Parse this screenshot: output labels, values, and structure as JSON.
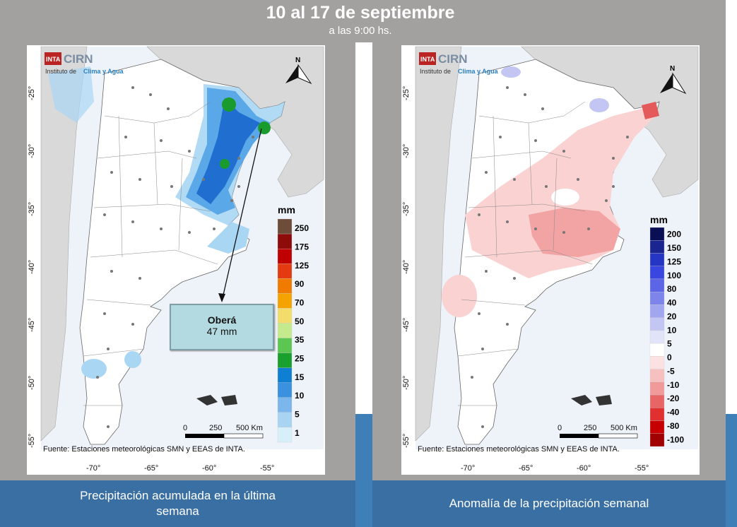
{
  "header": {
    "title": "10 al 17 de septiembre",
    "subtitle": "a las 9:00 hs."
  },
  "logo": {
    "inta": "INTA",
    "cirn": "CIRN",
    "institute_prefix": "Instituto de",
    "institute_name": "Clima y Agua"
  },
  "source_text": "Fuente: Estaciones meteorológicas SMN y EEAS de INTA.",
  "north_label": "N",
  "scale_bar": {
    "ticks": [
      "0",
      "250",
      "500 Km"
    ]
  },
  "lat_ticks": [
    "-25°",
    "-30°",
    "-35°",
    "-40°",
    "-45°",
    "-50°",
    "-55°"
  ],
  "lon_ticks": [
    "-70°",
    "-65°",
    "-60°",
    "-55°"
  ],
  "left_map": {
    "caption_line1": "Precipitación acumulada en la última",
    "caption_line2": "semana",
    "legend_unit": "mm",
    "legend_labels": [
      "250",
      "175",
      "125",
      "90",
      "70",
      "50",
      "35",
      "25",
      "15",
      "10",
      "5",
      "1"
    ],
    "legend_colors": [
      "#6e4c3a",
      "#8e0b0b",
      "#c00000",
      "#e43a12",
      "#f07b00",
      "#f4a300",
      "#f3dc69",
      "#c5e98d",
      "#5cc653",
      "#1aa02d",
      "#0f7fd4",
      "#3a91df",
      "#7bb7ec",
      "#a8d4f2",
      "#d6eff9"
    ],
    "callout_name": "Oberá",
    "callout_value": "47 mm"
  },
  "right_map": {
    "caption": "Anomalía de la precipitación semanal",
    "legend_unit": "mm",
    "legend_labels": [
      "200",
      "150",
      "125",
      "100",
      "80",
      "40",
      "20",
      "10",
      "5",
      "0",
      "-5",
      "-10",
      "-20",
      "-40",
      "-80",
      "-100"
    ],
    "legend_colors": [
      "#0a0f55",
      "#1a2590",
      "#2636c4",
      "#3a46e0",
      "#5c65e6",
      "#7d84ea",
      "#a1a6ee",
      "#c3c6f3",
      "#e1e3f8",
      "#ffffff",
      "#fbe1e1",
      "#f6c0c0",
      "#f09a9a",
      "#e86565",
      "#e03030",
      "#c60000",
      "#a00000"
    ]
  }
}
